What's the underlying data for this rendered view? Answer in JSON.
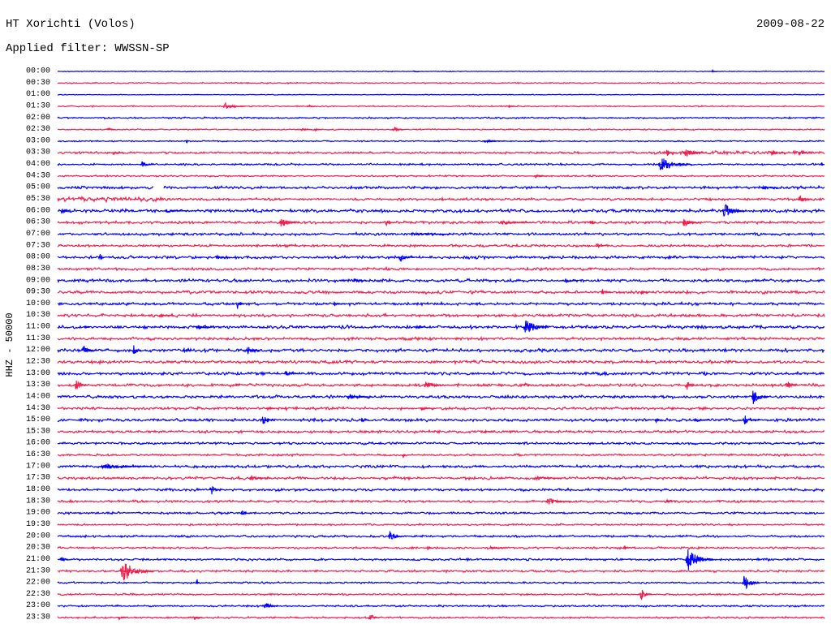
{
  "chart_data": {
    "type": "line",
    "title": "HT Xorichti (Volos)",
    "date": "2009-08-22",
    "subtitle": "Applied filter: WWSSN-SP",
    "ylabel": "HHZ - 50000",
    "xlim": [
      0,
      30
    ],
    "colors": [
      "#0000ff",
      "#f01e4e"
    ],
    "rows": [
      {
        "label": "00:00",
        "noise": 0.03,
        "events": [
          [
            13.94,
            0.12,
            0.2
          ],
          [
            25.62,
            0.12,
            0.2
          ]
        ]
      },
      {
        "label": "00:30",
        "noise": 0.05,
        "events": []
      },
      {
        "label": "01:00",
        "noise": 0.03,
        "events": []
      },
      {
        "label": "01:30",
        "noise": 0.05,
        "events": [
          [
            6.57,
            0.3,
            0.8
          ],
          [
            9.81,
            0.15,
            0.3
          ],
          [
            17.68,
            0.12,
            0.2
          ]
        ]
      },
      {
        "label": "02:00",
        "noise": 0.06,
        "events": []
      },
      {
        "label": "02:30",
        "noise": 0.05,
        "events": [
          [
            1.97,
            0.2,
            0.3
          ],
          [
            9.56,
            0.15,
            0.4
          ],
          [
            10.06,
            0.15,
            0.3
          ],
          [
            13.14,
            0.25,
            0.5
          ]
        ]
      },
      {
        "label": "03:00",
        "noise": 0.05,
        "events": [
          [
            5.05,
            0.2,
            0.1
          ],
          [
            16.73,
            0.15,
            0.8
          ]
        ]
      },
      {
        "label": "03:30",
        "noise": 0.08,
        "noisy": [
          [
            23.1,
            30,
            0.13
          ]
        ],
        "events": [
          [
            2.19,
            0.15,
            0.4
          ],
          [
            23.84,
            0.3,
            0.4
          ],
          [
            24.57,
            0.45,
            0.8
          ],
          [
            27.97,
            0.2,
            0.5
          ],
          [
            29.02,
            0.3,
            0.3
          ]
        ]
      },
      {
        "label": "04:00",
        "noise": 0.07,
        "events": [
          [
            3.3,
            0.35,
            0.4
          ],
          [
            23.62,
            0.65,
            1.2
          ],
          [
            29.9,
            0.25,
            0.1
          ]
        ]
      },
      {
        "label": "04:30",
        "noise": 0.06,
        "events": [
          [
            18.7,
            0.15,
            0.5
          ]
        ]
      },
      {
        "label": "05:00",
        "noise": 0.1,
        "gaps": [
          [
            3.75,
            4.15
          ]
        ],
        "events": [
          [
            27.59,
            0.15,
            0.6
          ]
        ]
      },
      {
        "label": "05:30",
        "noise": 0.09,
        "noisy": [
          [
            0,
            4.5,
            0.16
          ]
        ],
        "events": [
          [
            29.02,
            0.45,
            0.5
          ]
        ]
      },
      {
        "label": "06:00",
        "noise": 0.12,
        "events": [
          [
            0.16,
            0.25,
            0.3
          ],
          [
            4.29,
            0.15,
            0.8
          ],
          [
            26.1,
            0.7,
            0.8
          ]
        ]
      },
      {
        "label": "06:30",
        "noise": 0.1,
        "events": [
          [
            8.76,
            0.45,
            0.7
          ],
          [
            12.86,
            0.3,
            0.3
          ],
          [
            17.43,
            0.2,
            1.2
          ],
          [
            20.86,
            0.3,
            0.2
          ],
          [
            24.51,
            0.45,
            0.6
          ]
        ]
      },
      {
        "label": "07:00",
        "noise": 0.1,
        "events": [
          [
            13.94,
            0.15,
            1.5
          ]
        ]
      },
      {
        "label": "07:30",
        "noise": 0.09,
        "events": [
          [
            21.08,
            0.18,
            0.4
          ]
        ]
      },
      {
        "label": "08:00",
        "noise": 0.11,
        "events": [
          [
            1.65,
            0.45,
            0.2
          ],
          [
            6.25,
            0.2,
            0.5
          ],
          [
            13.4,
            0.35,
            0.6
          ]
        ]
      },
      {
        "label": "08:30",
        "noise": 0.1,
        "events": []
      },
      {
        "label": "09:00",
        "noise": 0.11,
        "events": [
          [
            11.59,
            0.2,
            0.5
          ],
          [
            19.87,
            0.2,
            0.5
          ]
        ]
      },
      {
        "label": "09:30",
        "noise": 0.11,
        "events": [
          [
            21.3,
            0.3,
            0.4
          ],
          [
            22.83,
            0.15,
            0.5
          ]
        ]
      },
      {
        "label": "10:00",
        "noise": 0.11,
        "events": [
          [
            7.02,
            0.5,
            0.3
          ],
          [
            10.83,
            0.25,
            0.3
          ]
        ]
      },
      {
        "label": "10:30",
        "noise": 0.11,
        "events": [
          [
            4.03,
            0.15,
            0.5
          ]
        ]
      },
      {
        "label": "11:00",
        "noise": 0.12,
        "events": [
          [
            1.08,
            0.25,
            0.2
          ],
          [
            5.49,
            0.2,
            0.6
          ],
          [
            14.13,
            0.2,
            0.3
          ],
          [
            18.32,
            0.75,
            0.9
          ]
        ]
      },
      {
        "label": "11:30",
        "noise": 0.11,
        "events": []
      },
      {
        "label": "12:00",
        "noise": 0.12,
        "events": [
          [
            1.02,
            0.45,
            0.5
          ],
          [
            2.98,
            0.5,
            0.3
          ],
          [
            4.95,
            0.25,
            0.3
          ],
          [
            7.43,
            0.4,
            0.5
          ]
        ]
      },
      {
        "label": "12:30",
        "noise": 0.11,
        "events": []
      },
      {
        "label": "13:00",
        "noise": 0.11,
        "events": [
          [
            8.92,
            0.25,
            0.5
          ]
        ]
      },
      {
        "label": "13:30",
        "noise": 0.11,
        "events": [
          [
            0.7,
            0.55,
            0.5
          ],
          [
            6.95,
            0.2,
            0.2
          ],
          [
            14.41,
            0.45,
            0.7
          ],
          [
            18.29,
            0.3,
            0.2
          ],
          [
            24.63,
            0.45,
            0.3
          ],
          [
            28.54,
            0.45,
            0.4
          ]
        ]
      },
      {
        "label": "14:00",
        "noise": 0.11,
        "events": [
          [
            11.4,
            0.35,
            0.8
          ],
          [
            27.21,
            0.65,
            0.6
          ]
        ]
      },
      {
        "label": "14:30",
        "noise": 0.1,
        "events": [
          [
            8.22,
            0.2,
            0.3
          ],
          [
            14.25,
            0.15,
            0.5
          ]
        ]
      },
      {
        "label": "15:00",
        "noise": 0.11,
        "events": [
          [
            8.0,
            0.5,
            0.5
          ],
          [
            11.9,
            0.25,
            0.3
          ],
          [
            23.4,
            0.25,
            0.2
          ],
          [
            24.98,
            0.2,
            0.5
          ],
          [
            26.89,
            0.45,
            0.6
          ]
        ]
      },
      {
        "label": "15:30",
        "noise": 0.1,
        "events": [
          [
            16.7,
            0.15,
            0.4
          ]
        ]
      },
      {
        "label": "16:00",
        "noise": 0.09,
        "events": []
      },
      {
        "label": "16:30",
        "noise": 0.08,
        "events": [
          [
            13.52,
            0.3,
            0.1
          ]
        ]
      },
      {
        "label": "17:00",
        "noise": 0.1,
        "events": [
          [
            1.85,
            0.25,
            1.8
          ]
        ]
      },
      {
        "label": "17:30",
        "noise": 0.1,
        "events": [
          [
            7.59,
            0.2,
            0.8
          ],
          [
            18.76,
            0.15,
            1.0
          ]
        ]
      },
      {
        "label": "18:00",
        "noise": 0.09,
        "events": [
          [
            6.0,
            0.5,
            0.4
          ]
        ]
      },
      {
        "label": "18:30",
        "noise": 0.09,
        "events": [
          [
            19.21,
            0.3,
            0.9
          ],
          [
            23.84,
            0.25,
            0.2
          ]
        ]
      },
      {
        "label": "19:00",
        "noise": 0.08,
        "events": [
          [
            7.21,
            0.25,
            0.4
          ]
        ]
      },
      {
        "label": "19:30",
        "noise": 0.07,
        "events": []
      },
      {
        "label": "20:00",
        "noise": 0.08,
        "events": [
          [
            12.98,
            0.5,
            0.5
          ]
        ]
      },
      {
        "label": "20:30",
        "noise": 0.08,
        "events": [
          [
            14.48,
            0.2,
            0.2
          ],
          [
            16.95,
            0.15,
            0.6
          ],
          [
            22.19,
            0.2,
            0.2
          ]
        ]
      },
      {
        "label": "21:00",
        "noise": 0.08,
        "events": [
          [
            0.13,
            0.25,
            0.3
          ],
          [
            24.67,
            0.95,
            1.0
          ]
        ]
      },
      {
        "label": "21:30",
        "noise": 0.08,
        "events": [
          [
            2.57,
            0.95,
            1.2
          ]
        ]
      },
      {
        "label": "22:00",
        "noise": 0.07,
        "events": [
          [
            5.46,
            0.3,
            0.1
          ],
          [
            26.86,
            0.75,
            0.6
          ]
        ]
      },
      {
        "label": "22:30",
        "noise": 0.07,
        "events": [
          [
            22.83,
            0.6,
            0.4
          ]
        ]
      },
      {
        "label": "23:00",
        "noise": 0.07,
        "events": [
          [
            8.13,
            0.45,
            0.5
          ]
        ]
      },
      {
        "label": "23:30",
        "noise": 0.07,
        "events": [
          [
            2.41,
            0.2,
            0.3
          ],
          [
            5.37,
            0.2,
            0.3
          ],
          [
            12.19,
            0.45,
            0.4
          ]
        ]
      }
    ]
  }
}
